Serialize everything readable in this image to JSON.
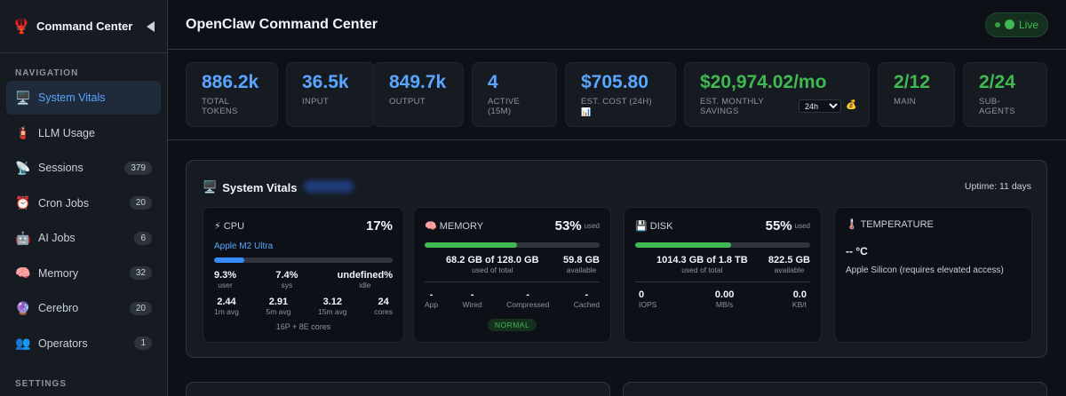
{
  "sidebar": {
    "logo_icon": "lobster-icon",
    "title": "Command Center",
    "nav_section": "NAVIGATION",
    "settings_section": "SETTINGS",
    "items": [
      {
        "label": "System Vitals",
        "icon": "monitor-icon",
        "count": ""
      },
      {
        "label": "LLM Usage",
        "icon": "fire-extinguisher-icon",
        "count": ""
      },
      {
        "label": "Sessions",
        "icon": "satellite-icon",
        "count": "379"
      },
      {
        "label": "Cron Jobs",
        "icon": "alarm-clock-icon",
        "count": "20"
      },
      {
        "label": "AI Jobs",
        "icon": "robot-icon",
        "count": "6"
      },
      {
        "label": "Memory",
        "icon": "brain-icon",
        "count": "32"
      },
      {
        "label": "Cerebro",
        "icon": "crystal-ball-icon",
        "count": "20"
      },
      {
        "label": "Operators",
        "icon": "people-icon",
        "count": "1"
      }
    ]
  },
  "header": {
    "title": "OpenClaw Command Center",
    "live_label": "Live"
  },
  "stats": [
    {
      "value": "886.2k",
      "label": "TOTAL TOKENS"
    },
    {
      "value": "36.5k",
      "label": "INPUT"
    },
    {
      "value": "849.7k",
      "label": "OUTPUT"
    },
    {
      "value": "4",
      "label": "ACTIVE (15M)"
    },
    {
      "value": "$705.80",
      "label": "EST. COST (24H)"
    },
    {
      "value": "$20,974.02/mo",
      "label": "EST. MONTHLY SAVINGS",
      "period": "24h"
    },
    {
      "value": "2/12",
      "label": "MAIN"
    },
    {
      "value": "2/24",
      "label": "SUB-AGENTS"
    }
  ],
  "vitals": {
    "title": "System Vitals",
    "uptime": "Uptime: 11 days",
    "cpu": {
      "name": "CPU",
      "pct": "17%",
      "model": "Apple M2 Ultra",
      "fill": 0.17,
      "user": "9.3%",
      "user_label": "user",
      "sys": "7.4%",
      "sys_label": "sys",
      "idle": "undefined%",
      "idle_label": "idle",
      "avg1": "2.44",
      "avg1_label": "1m avg",
      "avg5": "2.91",
      "avg5_label": "5m avg",
      "avg15": "3.12",
      "avg15_label": "15m avg",
      "cores": "24",
      "cores_label": "cores",
      "cores_detail": "16P + 8E cores"
    },
    "memory": {
      "name": "MEMORY",
      "pct": "53%",
      "used_label": "used",
      "fill": 0.53,
      "used": "68.2 GB of 128.0 GB",
      "used_sub": "used of total",
      "avail": "59.8 GB",
      "avail_sub": "available",
      "app": "-",
      "app_label": "App",
      "wired": "-",
      "wired_label": "Wired",
      "compressed": "-",
      "compressed_label": "Compressed",
      "cached": "-",
      "cached_label": "Cached",
      "pressure": "NORMAL"
    },
    "disk": {
      "name": "DISK",
      "pct": "55%",
      "used_label": "used",
      "fill": 0.55,
      "used": "1014.3 GB of 1.8 TB",
      "used_sub": "used of total",
      "avail": "822.5 GB",
      "avail_sub": "available",
      "iops": "0",
      "iops_label": "IOPS",
      "mbs": "0.00",
      "mbs_label": "MB/s",
      "kbt": "0.0",
      "kbt_label": "KB/t"
    },
    "temperature": {
      "name": "TEMPERATURE",
      "value": "-- °C",
      "note": "Apple Silicon (requires elevated access)"
    }
  },
  "colors": {
    "accent": "#58a6ff",
    "green": "#3fb950",
    "cpu_bar": "#388bfd"
  }
}
